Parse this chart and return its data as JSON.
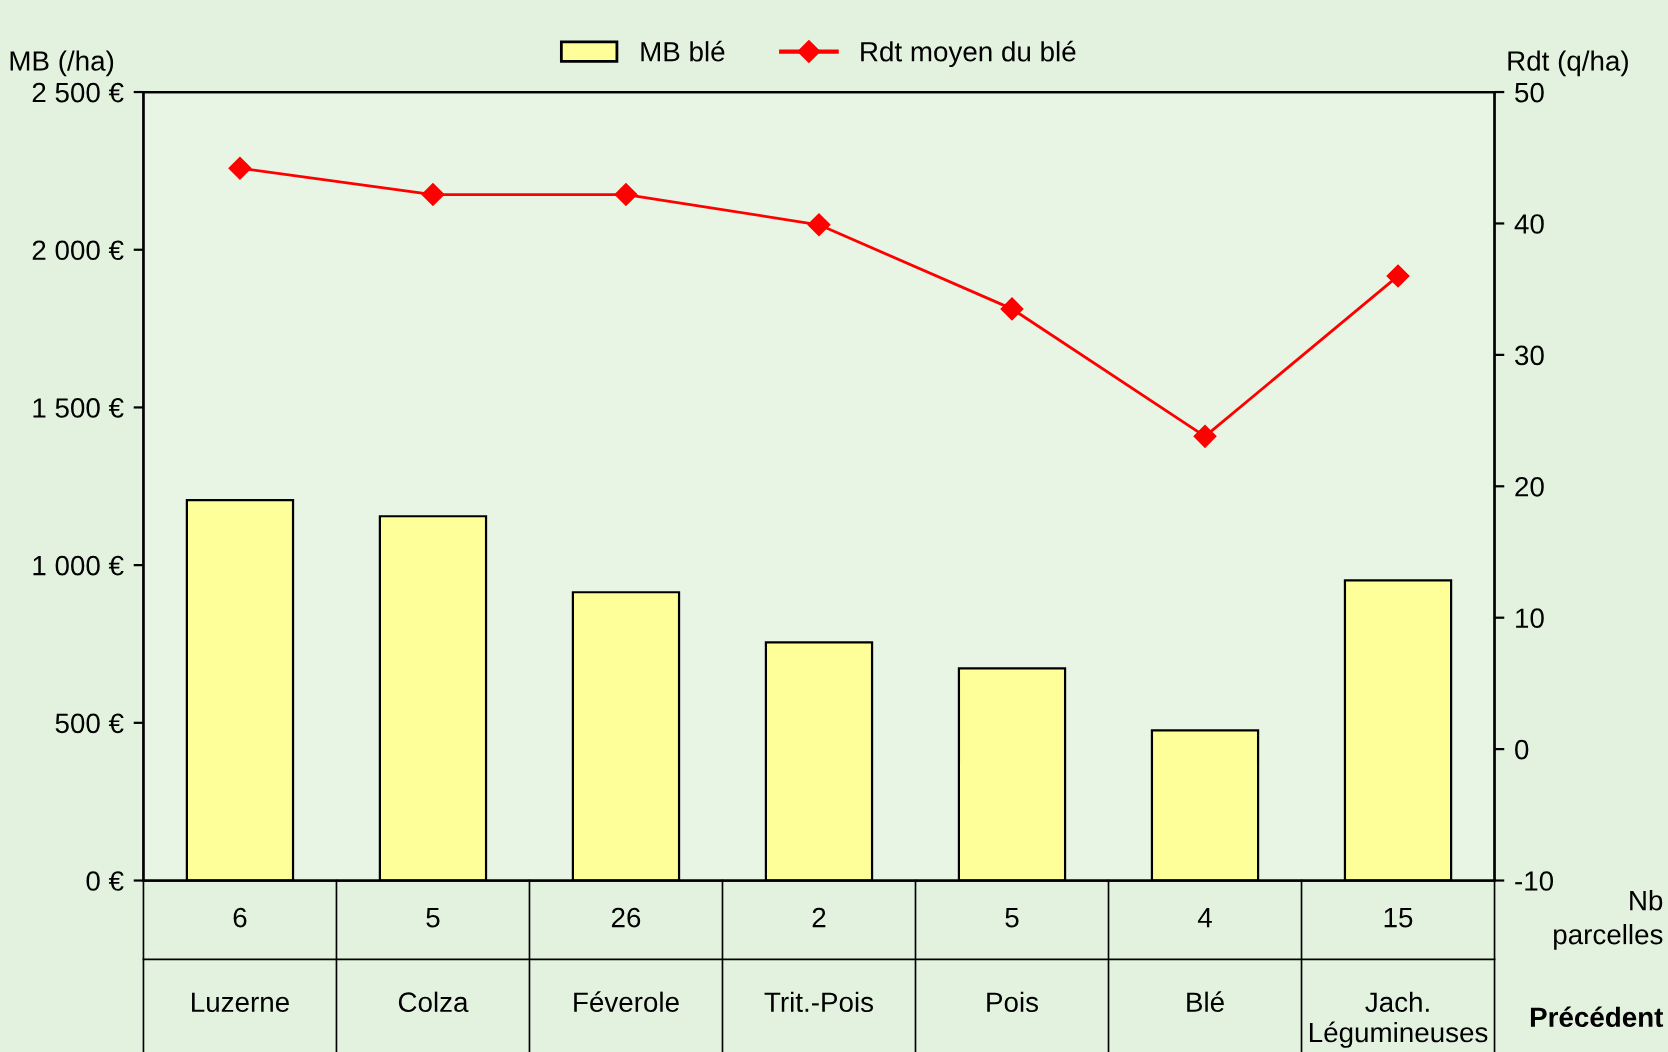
{
  "chart_data": {
    "type": "bar",
    "categories": [
      "Luzerne",
      "Colza",
      "Féverole",
      "Trit.-Pois",
      "Pois",
      "Blé",
      "Jach.\nLégumineuses"
    ],
    "series": [
      {
        "name": "MB blé",
        "color": "#ffff99",
        "values": [
          1206,
          1155,
          914,
          755,
          673,
          476,
          952
        ]
      },
      {
        "name": "Rdt moyen du blé",
        "type": "line",
        "axis": "y2",
        "color": "#ff0000",
        "marker": "diamond",
        "values": [
          44.2,
          42.2,
          42.2,
          39.9,
          33.5,
          23.8,
          36.0
        ]
      }
    ],
    "ylabel": "MB (/ha)",
    "y2label": "Rdt (q/ha)",
    "xlabel": "Précédent",
    "ylim": [
      0,
      2500
    ],
    "yticks": [
      {
        "value": 0,
        "label": "0 €"
      },
      {
        "value": 500,
        "label": "500 €"
      },
      {
        "value": 1000,
        "label": "1 000 €"
      },
      {
        "value": 1500,
        "label": "1 500 €"
      },
      {
        "value": 2000,
        "label": "2 000 €"
      },
      {
        "value": 2500,
        "label": "2 500 €"
      }
    ],
    "y2lim": [
      -10,
      50
    ],
    "y2ticks": [
      -10,
      0,
      10,
      20,
      30,
      40,
      50
    ],
    "annotations": [
      "6",
      "5",
      "26",
      "2",
      "5",
      "4",
      "15",
      "Nb\nparcelles"
    ],
    "legend": "top",
    "grid": false
  }
}
